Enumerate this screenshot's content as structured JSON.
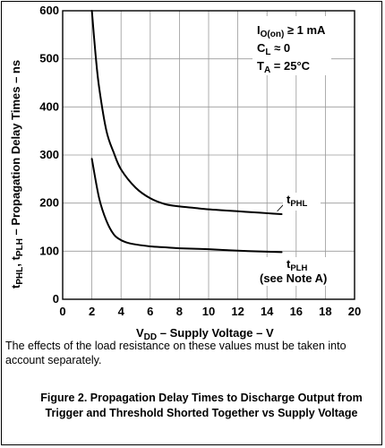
{
  "chart_data": {
    "type": "line",
    "ylabel": {
      "tphl_t": "t",
      "tphl_sub": "PHL",
      "sep": ", ",
      "tplh_t": "t",
      "tplh_sub": "PLH",
      "rest": " – Propagation Delay Times – ns"
    },
    "xlabel": {
      "v": "V",
      "sub": "DD",
      "rest": " – Supply Voltage – V"
    },
    "xlim": [
      0,
      20
    ],
    "ylim": [
      0,
      600
    ],
    "xticks": [
      0,
      2,
      4,
      6,
      8,
      10,
      12,
      14,
      16,
      18,
      20
    ],
    "yticks": [
      0,
      100,
      200,
      300,
      400,
      500,
      600
    ],
    "grid": true,
    "conditions": [
      {
        "main": "I",
        "sub": "O(on)",
        "rest": " ≥ 1 mA"
      },
      {
        "main": "C",
        "sub": "L",
        "rest": " ≈ 0"
      },
      {
        "main": "T",
        "sub": "A",
        "rest": " = 25°C"
      }
    ],
    "series": [
      {
        "name": "tPHL",
        "label_main": "t",
        "label_sub": "PHL",
        "x": [
          2.0,
          2.25,
          2.5,
          3.0,
          3.5,
          4.0,
          5.0,
          6.0,
          7.0,
          8.0,
          9.0,
          10.0,
          11.0,
          12.0,
          13.0,
          14.0,
          15.0
        ],
        "y": [
          600,
          510,
          440,
          350,
          305,
          270,
          232,
          210,
          198,
          193,
          190,
          187,
          185,
          183,
          181,
          179,
          177
        ]
      },
      {
        "name": "tPLH",
        "label_main": "t",
        "label_sub": "PLH",
        "label_extra": "(see Note A)",
        "x": [
          2.0,
          2.5,
          3.0,
          3.5,
          4.0,
          4.5,
          5.0,
          6.0,
          7.0,
          8.0,
          10.0,
          12.0,
          14.0,
          15.0
        ],
        "y": [
          292,
          210,
          163,
          135,
          123,
          117,
          114,
          110,
          108,
          106,
          104,
          101,
          99,
          98
        ]
      }
    ]
  },
  "note": "The effects of the load resistance on these values must be taken into account separately.",
  "caption": "Figure 2. Propagation Delay Times to Discharge Output from Trigger and Threshold Shorted Together vs Supply Voltage"
}
